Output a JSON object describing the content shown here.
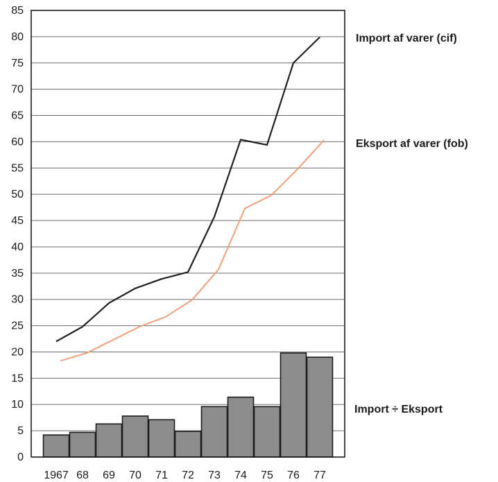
{
  "chart_data": {
    "type": "line",
    "x_tick_labels": [
      "1967",
      "68",
      "69",
      "70",
      "71",
      "72",
      "73",
      "74",
      "75",
      "76",
      "77"
    ],
    "ylim": [
      0,
      85
    ],
    "y_ticks": [
      0,
      5,
      10,
      15,
      20,
      25,
      30,
      35,
      40,
      45,
      50,
      55,
      60,
      65,
      70,
      75,
      80,
      85
    ],
    "grid": true,
    "series": [
      {
        "name": "Import af varer (cif)",
        "type": "line",
        "color": "#1f1f1f",
        "values": [
          22.0,
          24.8,
          29.3,
          32.1,
          33.9,
          35.2,
          45.7,
          60.4,
          59.4,
          75.0,
          79.9
        ]
      },
      {
        "name": "Eksport af varer (fob)",
        "type": "line",
        "color": "#f0a07a",
        "values": [
          18.3,
          19.8,
          22.3,
          24.8,
          26.7,
          29.9,
          35.7,
          47.3,
          49.8,
          54.8,
          60.3
        ]
      },
      {
        "name": "Import ÷ Eksport",
        "type": "bar",
        "color": "#8c8c8c",
        "values": [
          4.2,
          4.7,
          6.3,
          7.8,
          7.1,
          4.9,
          9.6,
          11.4,
          9.6,
          19.8,
          19.0
        ]
      }
    ]
  }
}
